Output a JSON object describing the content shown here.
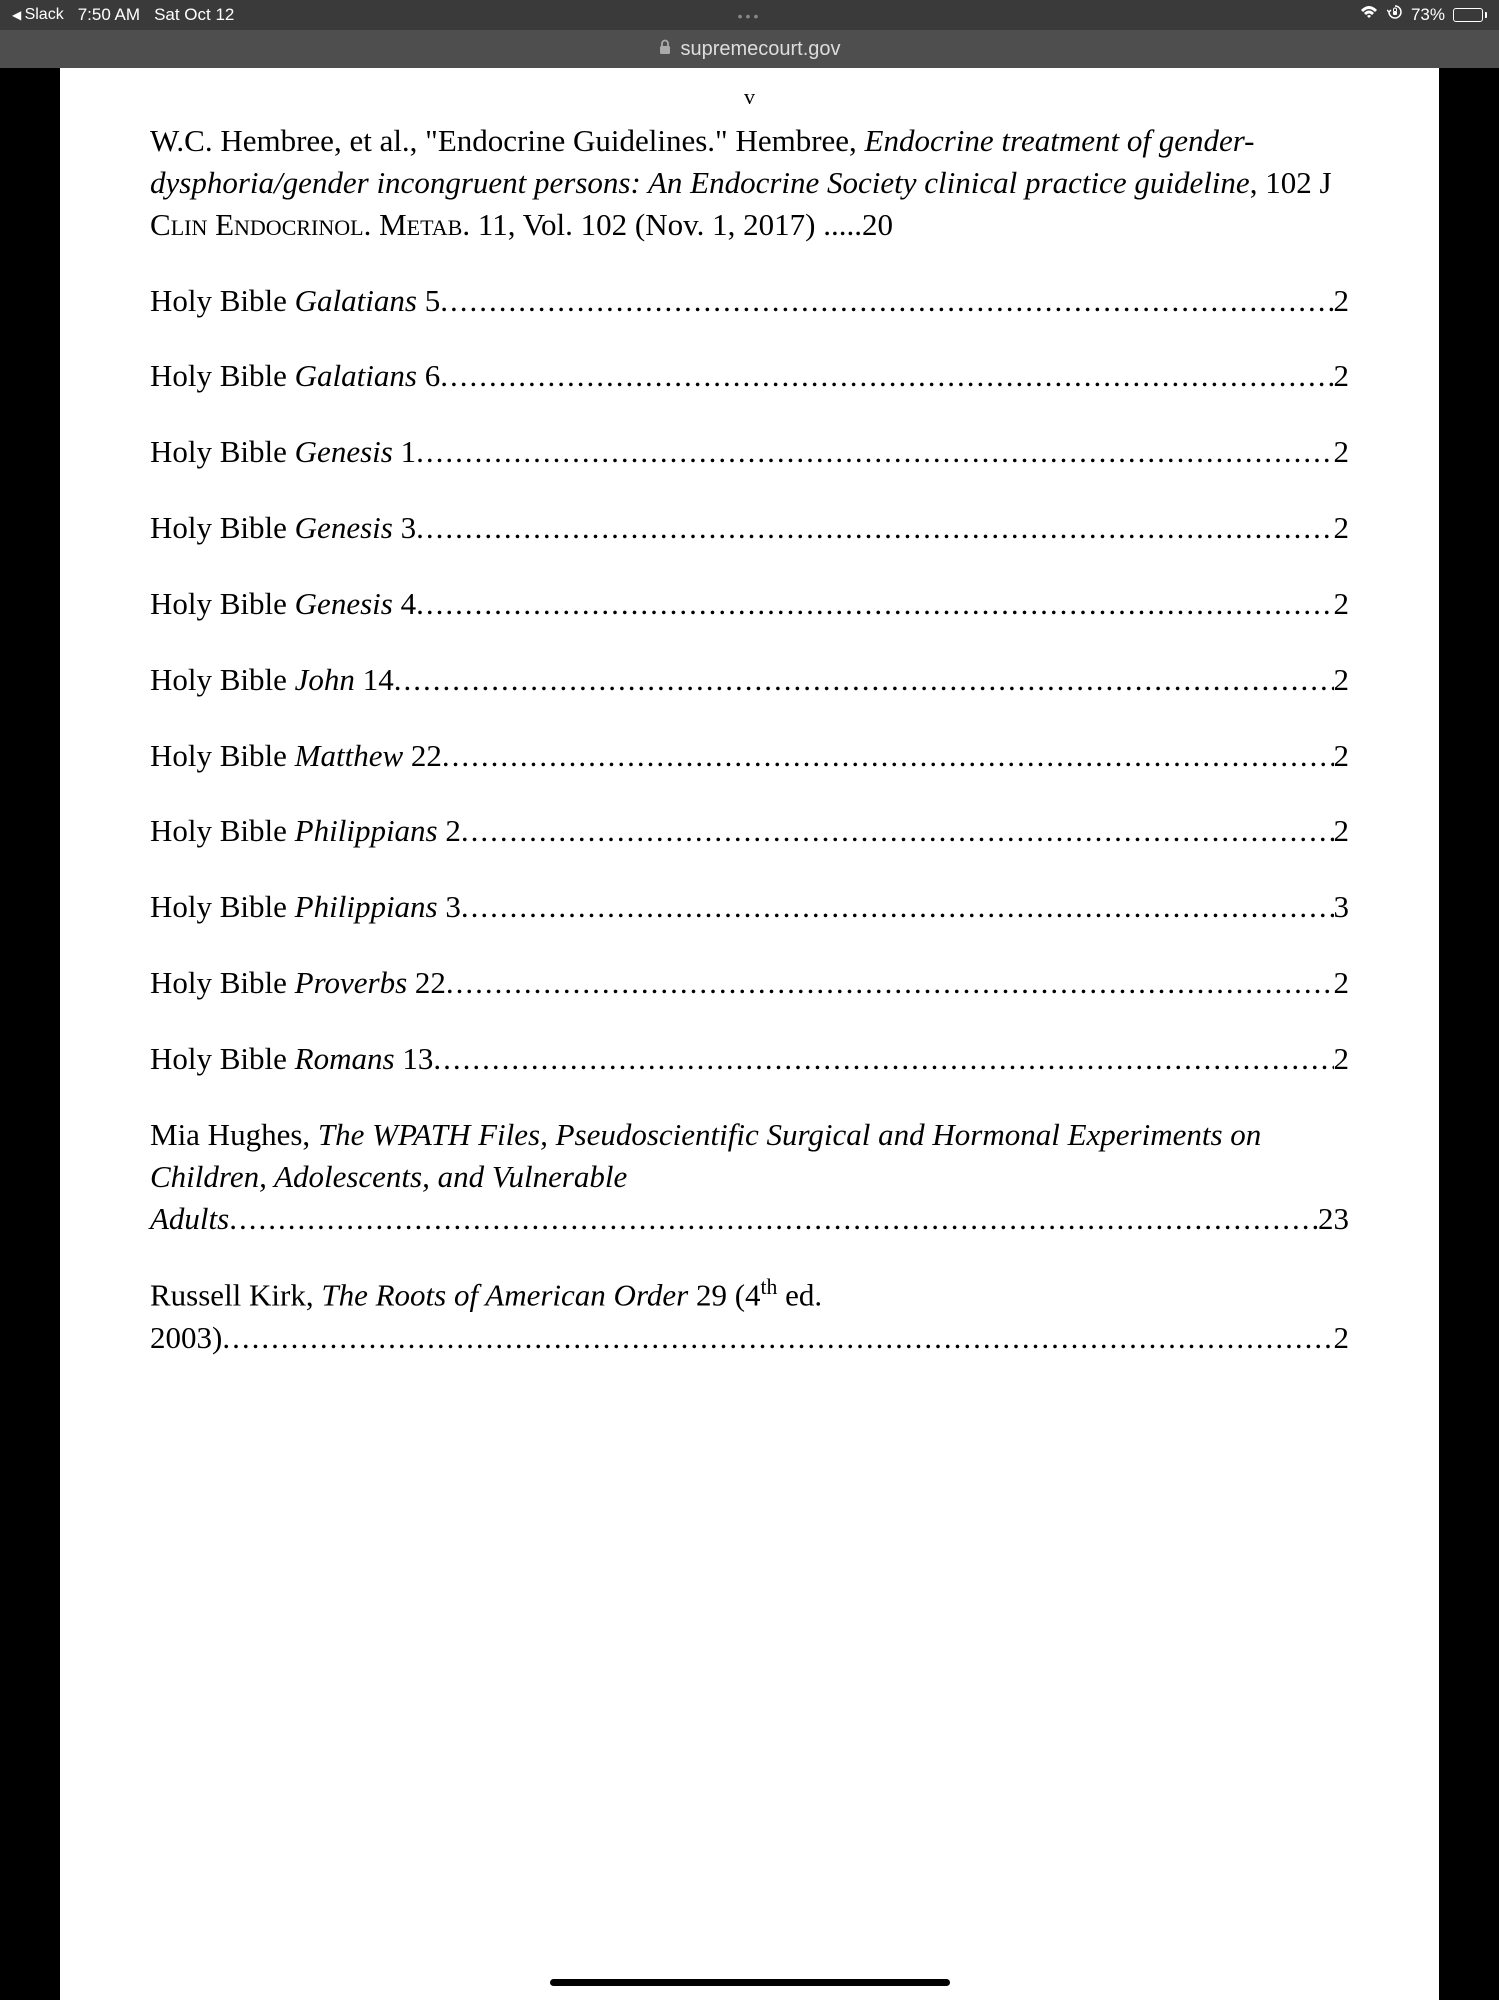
{
  "status": {
    "back_app": "Slack",
    "time": "7:50 AM",
    "date": "Sat Oct 12",
    "battery_pct": "73%"
  },
  "url_bar": {
    "domain": "supremecourt.gov"
  },
  "page_marker": "v",
  "entries": [
    {
      "segments": [
        {
          "t": "W.C. Hembree, et al., \"Endocrine Guidelines.\" Hembree, "
        },
        {
          "t": "Endocrine treatment of gender-dysphoria/gender incongruent persons: An Endocrine Society clinical practice guideline",
          "italic": true
        },
        {
          "t": ", 102 J C"
        },
        {
          "t": "lin",
          "sc": true
        },
        {
          "t": " E"
        },
        {
          "t": "ndocrinol",
          "sc": true
        },
        {
          "t": ". M"
        },
        {
          "t": "etab",
          "sc": true
        },
        {
          "t": ". 11, Vol. 102 (Nov. 1, 2017) "
        }
      ],
      "dots": ".....",
      "page": "20",
      "multiline": true
    },
    {
      "segments": [
        {
          "t": "Holy Bible "
        },
        {
          "t": "Galatians",
          "italic": true
        },
        {
          "t": " 5"
        }
      ],
      "page": "2"
    },
    {
      "segments": [
        {
          "t": "Holy Bible "
        },
        {
          "t": "Galatians",
          "italic": true
        },
        {
          "t": " 6"
        }
      ],
      "page": "2"
    },
    {
      "segments": [
        {
          "t": "Holy Bible "
        },
        {
          "t": "Genesis",
          "italic": true
        },
        {
          "t": " 1"
        }
      ],
      "page": "2"
    },
    {
      "segments": [
        {
          "t": "Holy Bible "
        },
        {
          "t": "Genesis",
          "italic": true
        },
        {
          "t": " 3"
        }
      ],
      "page": "2"
    },
    {
      "segments": [
        {
          "t": "Holy Bible "
        },
        {
          "t": "Genesis",
          "italic": true
        },
        {
          "t": " 4"
        }
      ],
      "page": "2"
    },
    {
      "segments": [
        {
          "t": "Holy Bible "
        },
        {
          "t": "John",
          "italic": true
        },
        {
          "t": " 14"
        }
      ],
      "page": "2"
    },
    {
      "segments": [
        {
          "t": "Holy Bible "
        },
        {
          "t": "Matthew",
          "italic": true
        },
        {
          "t": " 22"
        }
      ],
      "page": "2"
    },
    {
      "segments": [
        {
          "t": "Holy Bible "
        },
        {
          "t": "Philippians",
          "italic": true
        },
        {
          "t": " 2"
        }
      ],
      "page": "2"
    },
    {
      "segments": [
        {
          "t": "Holy Bible "
        },
        {
          "t": "Philippians",
          "italic": true
        },
        {
          "t": " 3"
        }
      ],
      "page": "3"
    },
    {
      "segments": [
        {
          "t": "Holy Bible "
        },
        {
          "t": "Proverbs",
          "italic": true
        },
        {
          "t": " 22"
        }
      ],
      "page": "2"
    },
    {
      "segments": [
        {
          "t": "Holy Bible "
        },
        {
          "t": "Romans",
          "italic": true
        },
        {
          "t": " 13"
        }
      ],
      "page": "2"
    },
    {
      "segments": [
        {
          "t": "Mia Hughes, "
        },
        {
          "t": "The WPATH Files, Pseudoscientific Surgical and Hormonal Experiments on Children, Adolescents, and Vulnerable Adults",
          "italic": true
        }
      ],
      "page": "23",
      "multiline": true
    },
    {
      "segments": [
        {
          "t": "Russell Kirk, "
        },
        {
          "t": "The Roots of American Order",
          "italic": true
        },
        {
          "t": " 29 (4"
        },
        {
          "t": "th",
          "sup": true
        },
        {
          "t": " ed. 2003)"
        }
      ],
      "page": "2",
      "multiline": true
    }
  ]
}
